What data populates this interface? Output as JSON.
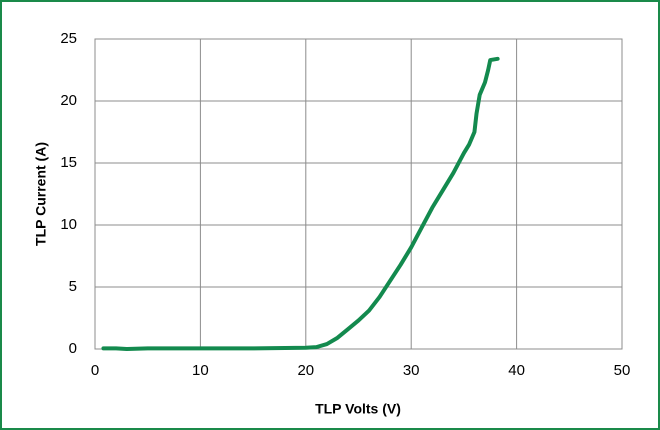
{
  "chart_data": {
    "type": "line",
    "xlabel": "TLP Volts (V)",
    "ylabel": "TLP Current (A)",
    "x": [
      0.8,
      2,
      3,
      5,
      10,
      15,
      20,
      21,
      22,
      23,
      24,
      25,
      26,
      27,
      28,
      29,
      30,
      31,
      32,
      33,
      34,
      35,
      35.5,
      36,
      36.2,
      36.5,
      37,
      37.3,
      37.5,
      38.2
    ],
    "values": [
      0.05,
      0.05,
      0,
      0.05,
      0.05,
      0.05,
      0.1,
      0.15,
      0.4,
      0.9,
      1.6,
      2.3,
      3.1,
      4.2,
      5.5,
      6.8,
      8.2,
      9.8,
      11.4,
      12.8,
      14.2,
      15.8,
      16.5,
      17.5,
      19,
      20.5,
      21.5,
      22.5,
      23.3,
      23.4
    ],
    "color": "#138a4e",
    "xlim": [
      0,
      50
    ],
    "ylim": [
      0,
      25
    ],
    "xticks": [
      0,
      10,
      20,
      30,
      40,
      50
    ],
    "yticks": [
      0,
      5,
      10,
      15,
      20,
      25
    ],
    "grid": true
  }
}
